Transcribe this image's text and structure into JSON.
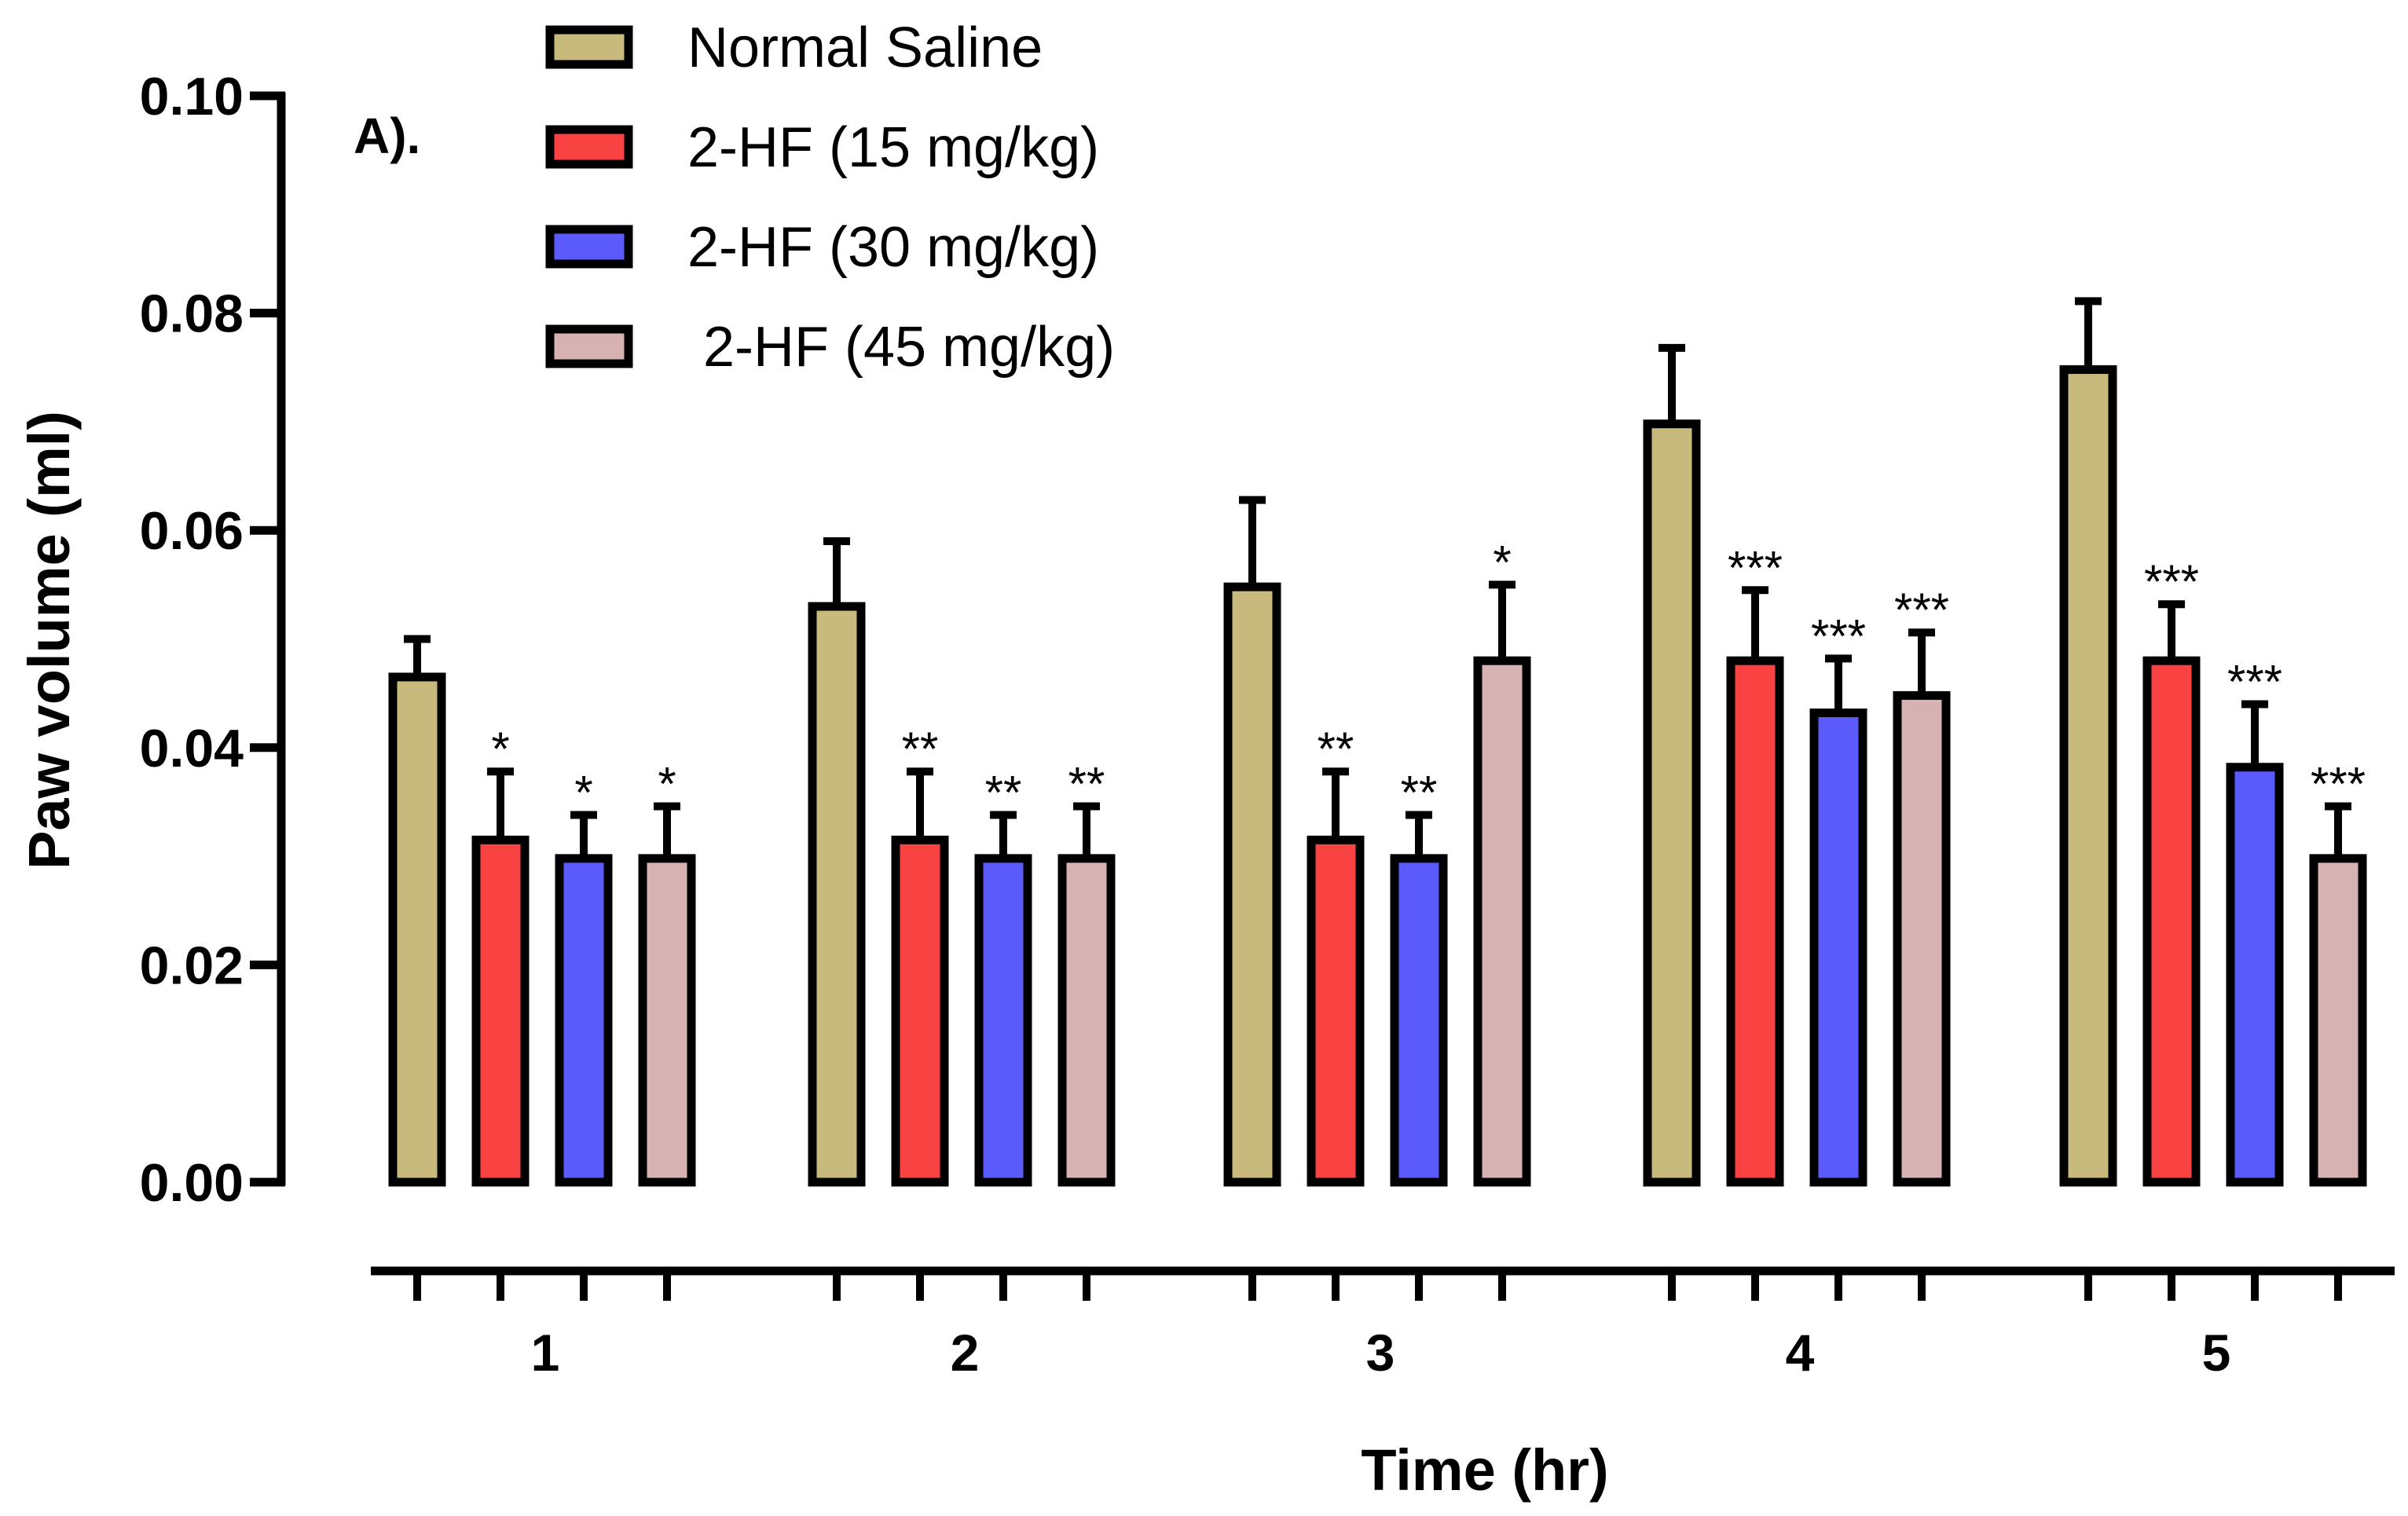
{
  "chart_data": {
    "type": "bar",
    "title": "",
    "panel_label": "A).",
    "xlabel": "Time (hr)",
    "ylabel": "Paw volume (ml)",
    "ylim": [
      0,
      0.1
    ],
    "yticks": [
      "0.00",
      "0.02",
      "0.04",
      "0.06",
      "0.08",
      "0.10"
    ],
    "ytick_values": [
      0,
      0.02,
      0.04,
      0.06,
      0.08,
      0.1
    ],
    "categories": [
      "1",
      "2",
      "3",
      "4",
      "5"
    ],
    "legend_position": "top-left",
    "series": [
      {
        "name": "Normal Saline",
        "color": "#C8BA7C",
        "values": [
          0.0465,
          0.053,
          0.0548,
          0.0698,
          0.0748
        ],
        "errors": [
          0.0035,
          0.006,
          0.008,
          0.007,
          0.0063
        ],
        "significance": [
          "",
          "",
          "",
          "",
          ""
        ]
      },
      {
        "name": "2-HF (15 mg/kg)",
        "color": "#F94343",
        "values": [
          0.0315,
          0.0315,
          0.0315,
          0.048,
          0.048
        ],
        "errors": [
          0.0063,
          0.0063,
          0.0063,
          0.0065,
          0.0052
        ],
        "significance": [
          "*",
          "**",
          "**",
          "***",
          "***"
        ]
      },
      {
        "name": "2-HF (30 mg/kg)",
        "color": "#5B5BFC",
        "values": [
          0.0298,
          0.0298,
          0.0298,
          0.0432,
          0.0382
        ],
        "errors": [
          0.004,
          0.004,
          0.004,
          0.005,
          0.0058
        ],
        "significance": [
          "*",
          "**",
          "**",
          "***",
          "***"
        ]
      },
      {
        "name": " 2-HF (45 mg/kg)",
        "color": "#D7B2B2",
        "values": [
          0.0298,
          0.0298,
          0.048,
          0.0448,
          0.0298
        ],
        "errors": [
          0.0048,
          0.0048,
          0.007,
          0.0058,
          0.0048
        ],
        "significance": [
          "*",
          "**",
          "*",
          "***",
          "***"
        ]
      }
    ]
  }
}
